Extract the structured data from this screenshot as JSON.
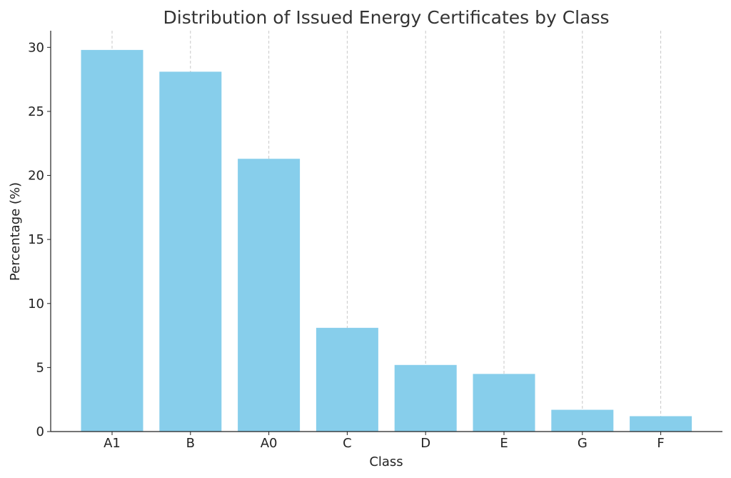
{
  "chart_data": {
    "type": "bar",
    "title": "Distribution of Issued Energy Certificates by Class",
    "xlabel": "Class",
    "ylabel": "Percentage (%)",
    "categories": [
      "A1",
      "B",
      "A0",
      "C",
      "D",
      "E",
      "G",
      "F"
    ],
    "values": [
      29.8,
      28.1,
      21.3,
      8.1,
      5.2,
      4.5,
      1.7,
      1.2
    ],
    "ylim": [
      0,
      31.3
    ],
    "yticks": [
      0,
      5,
      10,
      15,
      20,
      25,
      30
    ],
    "grid": "vertical dashed",
    "bar_color": "#87CEEB",
    "legend": "none"
  }
}
